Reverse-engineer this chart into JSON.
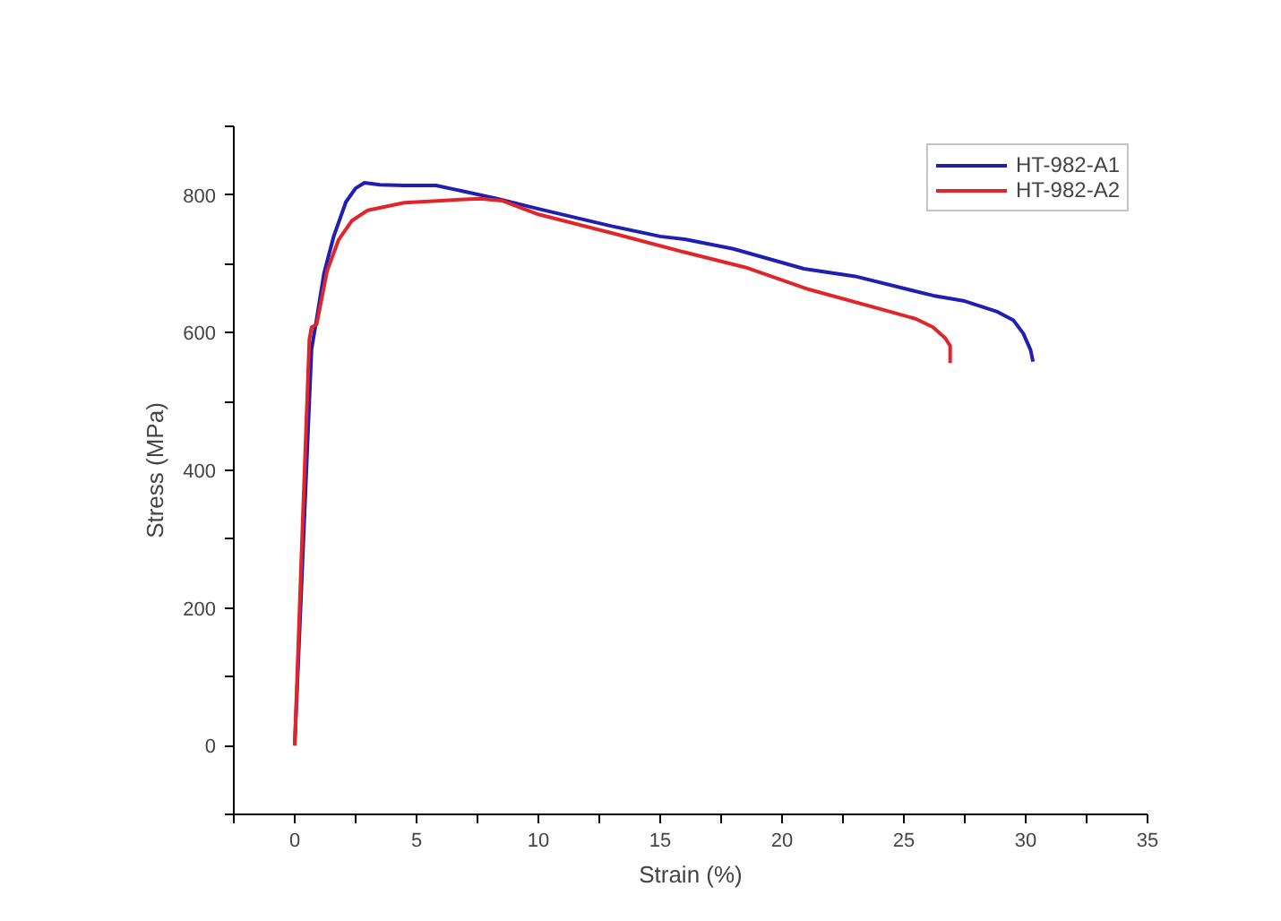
{
  "chart_data": {
    "type": "line",
    "xlabel": "Strain (%)",
    "ylabel": "Stress (MPa)",
    "xlim": [
      -2.5,
      35
    ],
    "ylim": [
      -100,
      900
    ],
    "xticks": [
      {
        "value": -2.5,
        "label": null
      },
      0,
      {
        "value": 2.5,
        "label": null
      },
      5,
      {
        "value": 7.5,
        "label": null
      },
      10,
      {
        "value": 12.5,
        "label": null
      },
      15,
      {
        "value": 17.5,
        "label": null
      },
      20,
      {
        "value": 22.5,
        "label": null
      },
      25,
      {
        "value": 27.5,
        "label": null
      },
      30,
      {
        "value": 32.5,
        "label": null
      },
      35
    ],
    "yticks": [
      {
        "value": -100,
        "label": null
      },
      0,
      {
        "value": 100,
        "label": null
      },
      200,
      {
        "value": 300,
        "label": null
      },
      400,
      {
        "value": 500,
        "label": null
      },
      600,
      {
        "value": 700,
        "label": null
      },
      800,
      {
        "value": 900,
        "label": null
      }
    ],
    "grid": false,
    "legend": "top right",
    "line_style": "solid",
    "marker": "none",
    "series": [
      {
        "name": "HT-982-A1",
        "color": "#1f1fb4",
        "x": [
          0,
          0.69,
          0.9,
          1.2,
          1.6,
          2.1,
          2.5,
          2.86,
          3.5,
          4.5,
          5.8,
          7,
          8.3,
          10,
          13,
          15,
          16,
          18,
          20.9,
          23,
          26.2,
          27.5,
          28.8,
          29.5,
          29.9,
          30.2,
          30.3
        ],
        "values": [
          0,
          576,
          620,
          686,
          740,
          790,
          810,
          818,
          815,
          814,
          814,
          805,
          795,
          780,
          755,
          740,
          736,
          722,
          693,
          682,
          654,
          646,
          631,
          618,
          599,
          575,
          558
        ]
      },
      {
        "name": "HT-982-A2",
        "color": "#e0262a",
        "x": [
          0,
          0.3,
          0.6,
          0.69,
          0.9,
          1.33,
          1.8,
          2.35,
          3,
          4.5,
          6,
          7.6,
          8.5,
          10,
          13,
          16,
          18.5,
          21.1,
          24.4,
          25.5,
          26.2,
          26.7,
          26.9,
          26.9
        ],
        "values": [
          0,
          300,
          590,
          608,
          612,
          690,
          735,
          763,
          778,
          789,
          792,
          795,
          792,
          772,
          745,
          717,
          695,
          663,
          631,
          620,
          608,
          592,
          581,
          556
        ]
      }
    ]
  }
}
